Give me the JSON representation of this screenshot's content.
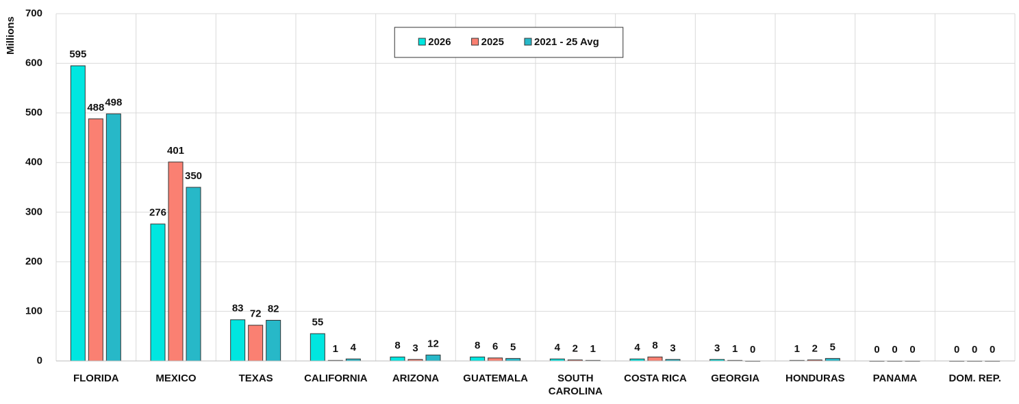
{
  "chart_data": {
    "type": "bar",
    "y_label": "Millions",
    "categories": [
      "FLORIDA",
      "MEXICO",
      "TEXAS",
      "CALIFORNIA",
      "ARIZONA",
      "GUATEMALA",
      "SOUTH CAROLINA",
      "COSTA RICA",
      "GEORGIA",
      "HONDURAS",
      "PANAMA",
      "DOM. REP."
    ],
    "series": [
      {
        "name": "2026",
        "color": "#00e6e0",
        "values": [
          595,
          276,
          83,
          55,
          8,
          8,
          4,
          4,
          3,
          1,
          0,
          0
        ]
      },
      {
        "name": "2025",
        "color": "#fa8072",
        "values": [
          488,
          401,
          72,
          1,
          3,
          6,
          2,
          8,
          1,
          2,
          0,
          0
        ]
      },
      {
        "name": "2021 - 25 Avg",
        "color": "#27b8c8",
        "values": [
          498,
          350,
          82,
          4,
          12,
          5,
          1,
          3,
          0,
          5,
          0,
          0
        ]
      }
    ],
    "ylim": [
      0,
      700
    ],
    "yticks": [
      0,
      100,
      200,
      300,
      400,
      500,
      600,
      700
    ],
    "grid": true,
    "legend": "top"
  }
}
